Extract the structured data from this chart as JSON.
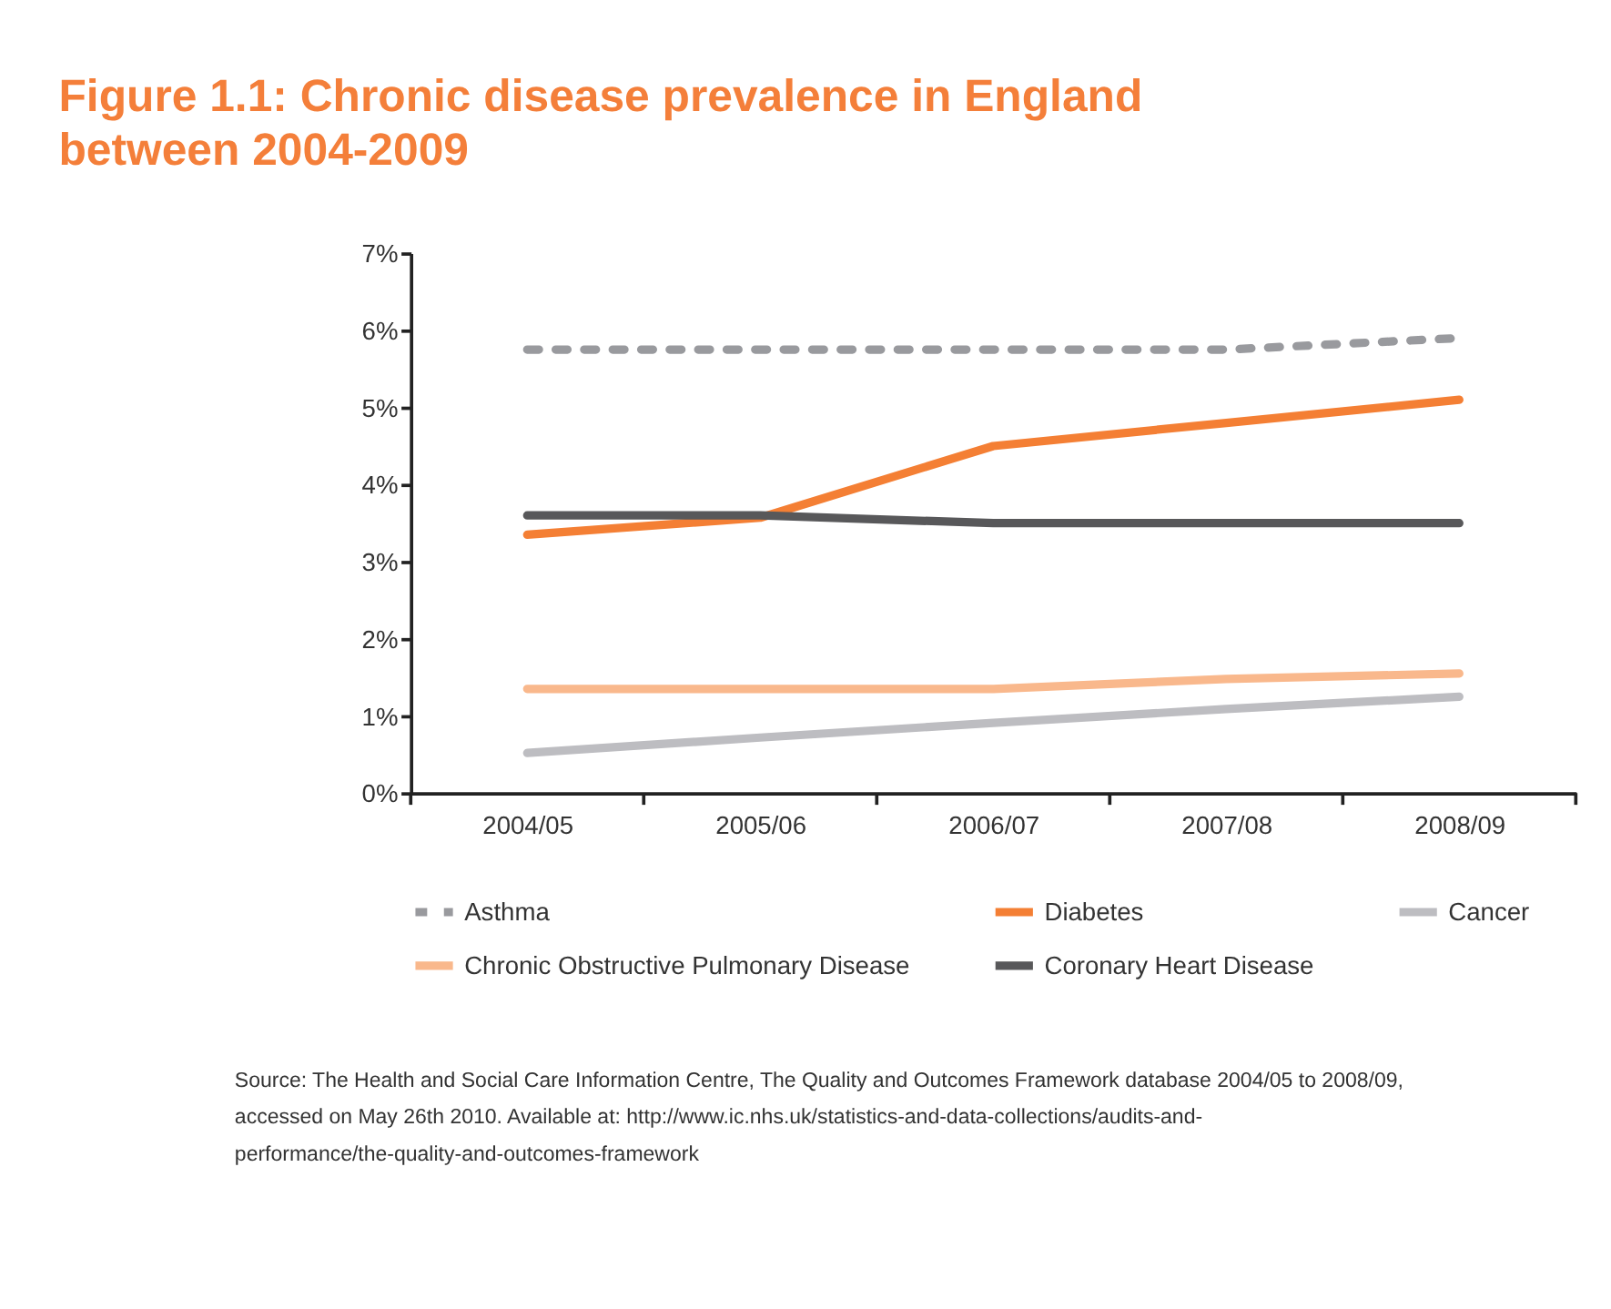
{
  "chart_data": {
    "type": "line",
    "title": "Figure 1.1: Chronic disease prevalence in England between 2004-2009",
    "categories": [
      "2004/05",
      "2005/06",
      "2006/07",
      "2007/08",
      "2008/09"
    ],
    "series": [
      {
        "name": "Asthma",
        "color": "#999a9e",
        "line_style": "dashed",
        "values": [
          5.75,
          5.75,
          5.75,
          5.75,
          5.9
        ]
      },
      {
        "name": "Diabetes",
        "color": "#f47f34",
        "values": [
          3.35,
          3.57,
          4.5,
          4.8,
          5.1
        ]
      },
      {
        "name": "Cancer",
        "color": "#bdbdc1",
        "values": [
          0.52,
          0.72,
          0.91,
          1.09,
          1.25
        ]
      },
      {
        "name": "Chronic Obstructive Pulmonary Disease",
        "color": "#f9b88c",
        "values": [
          1.35,
          1.35,
          1.35,
          1.48,
          1.55
        ]
      },
      {
        "name": "Coronary Heart Disease",
        "color": "#58585a",
        "values": [
          3.6,
          3.6,
          3.5,
          3.5,
          3.5
        ]
      }
    ],
    "ylim": [
      0,
      7
    ],
    "yticks": [
      {
        "value": 0,
        "label": "0%"
      },
      {
        "value": 1,
        "label": "1%"
      },
      {
        "value": 2,
        "label": "2%"
      },
      {
        "value": 3,
        "label": "3%"
      },
      {
        "value": 4,
        "label": "4%"
      },
      {
        "value": 5,
        "label": "5%"
      },
      {
        "value": 6,
        "label": "6%"
      },
      {
        "value": 7,
        "label": "7%"
      }
    ],
    "grid": false,
    "legend": "bottom",
    "line_style": "solid",
    "marker": "none",
    "annotations": [
      "Source: The Health and Social Care Information Centre, The Quality and Outcomes Framework database 2004/05 to 2008/09, accessed on May 26th 2010. Available at: http://www.ic.nhs.uk/statistics-and-data-collections/audits-and-performance/the-quality-and-outcomes-framework"
    ]
  }
}
